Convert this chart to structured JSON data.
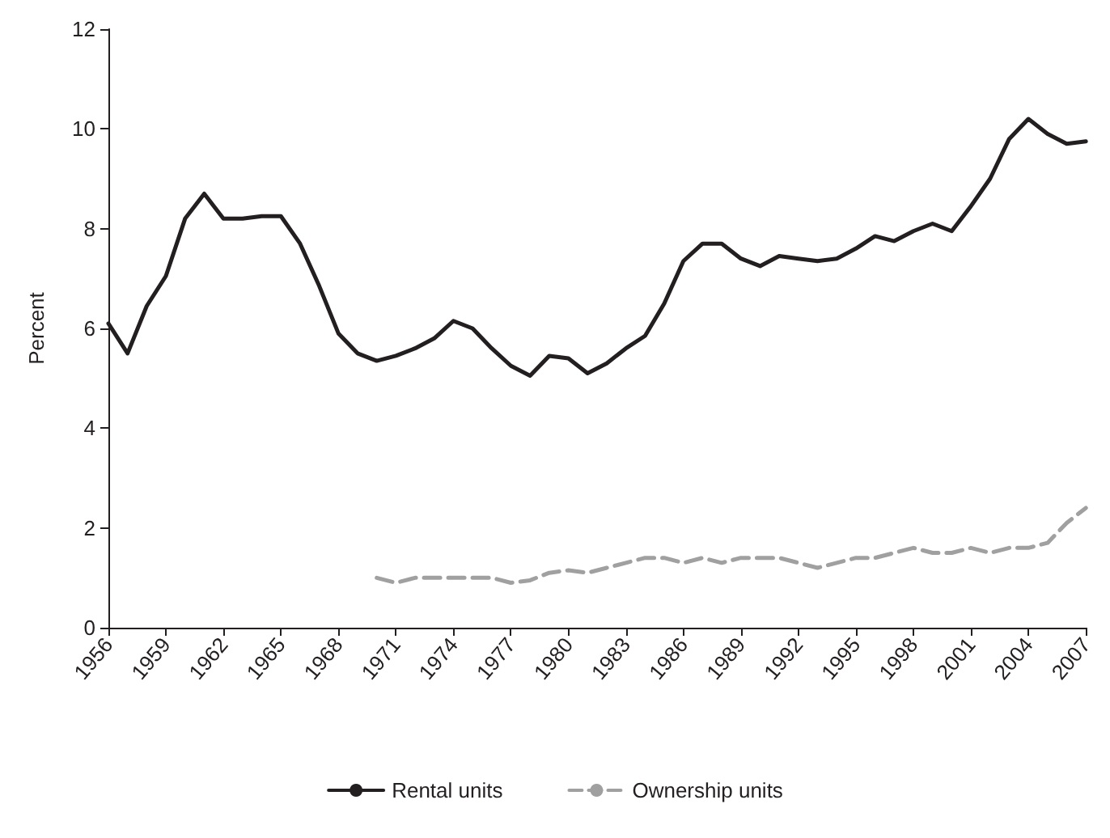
{
  "chart_data": {
    "type": "line",
    "ylabel": "Percent",
    "x": [
      1956,
      1957,
      1958,
      1959,
      1960,
      1961,
      1962,
      1963,
      1964,
      1965,
      1966,
      1967,
      1968,
      1969,
      1970,
      1971,
      1972,
      1973,
      1974,
      1975,
      1976,
      1977,
      1978,
      1979,
      1980,
      1981,
      1982,
      1983,
      1984,
      1985,
      1986,
      1987,
      1988,
      1989,
      1990,
      1991,
      1992,
      1993,
      1994,
      1995,
      1996,
      1997,
      1998,
      1999,
      2000,
      2001,
      2002,
      2003,
      2004,
      2005,
      2006,
      2007
    ],
    "series": [
      {
        "name": "Rental units",
        "color": "#231f20",
        "line_style": "solid",
        "values": [
          6.1,
          5.5,
          6.45,
          7.05,
          8.2,
          8.7,
          8.2,
          8.2,
          8.25,
          8.25,
          7.7,
          6.85,
          5.9,
          5.5,
          5.35,
          5.45,
          5.6,
          5.8,
          6.15,
          6.0,
          5.6,
          5.25,
          5.05,
          5.45,
          5.4,
          5.1,
          5.3,
          5.6,
          5.85,
          6.5,
          7.35,
          7.7,
          7.7,
          7.4,
          7.25,
          7.45,
          7.4,
          7.35,
          7.4,
          7.6,
          7.85,
          7.75,
          7.95,
          8.1,
          7.95,
          8.45,
          9.0,
          9.8,
          10.2,
          9.9,
          9.7,
          9.75
        ]
      },
      {
        "name": "Ownership units",
        "color": "#a0a0a0",
        "line_style": "dashed",
        "values": [
          null,
          null,
          null,
          null,
          null,
          null,
          null,
          null,
          null,
          null,
          null,
          null,
          null,
          null,
          1.0,
          0.9,
          1.0,
          1.0,
          1.0,
          1.0,
          1.0,
          0.9,
          0.95,
          1.1,
          1.15,
          1.1,
          1.2,
          1.3,
          1.4,
          1.4,
          1.3,
          1.4,
          1.3,
          1.4,
          1.4,
          1.4,
          1.3,
          1.2,
          1.3,
          1.4,
          1.4,
          1.5,
          1.6,
          1.5,
          1.5,
          1.6,
          1.5,
          1.6,
          1.6,
          1.7,
          2.1,
          2.4
        ]
      }
    ],
    "xlim": [
      1956,
      2007
    ],
    "xticks": [
      1956,
      1959,
      1962,
      1965,
      1968,
      1971,
      1974,
      1977,
      1980,
      1983,
      1986,
      1989,
      1992,
      1995,
      1998,
      2001,
      2004,
      2007
    ],
    "ylim": [
      0,
      12
    ],
    "yticks": [
      0,
      2,
      4,
      6,
      8,
      10,
      12
    ],
    "grid": false,
    "legend": "bottom",
    "marker": "none"
  }
}
